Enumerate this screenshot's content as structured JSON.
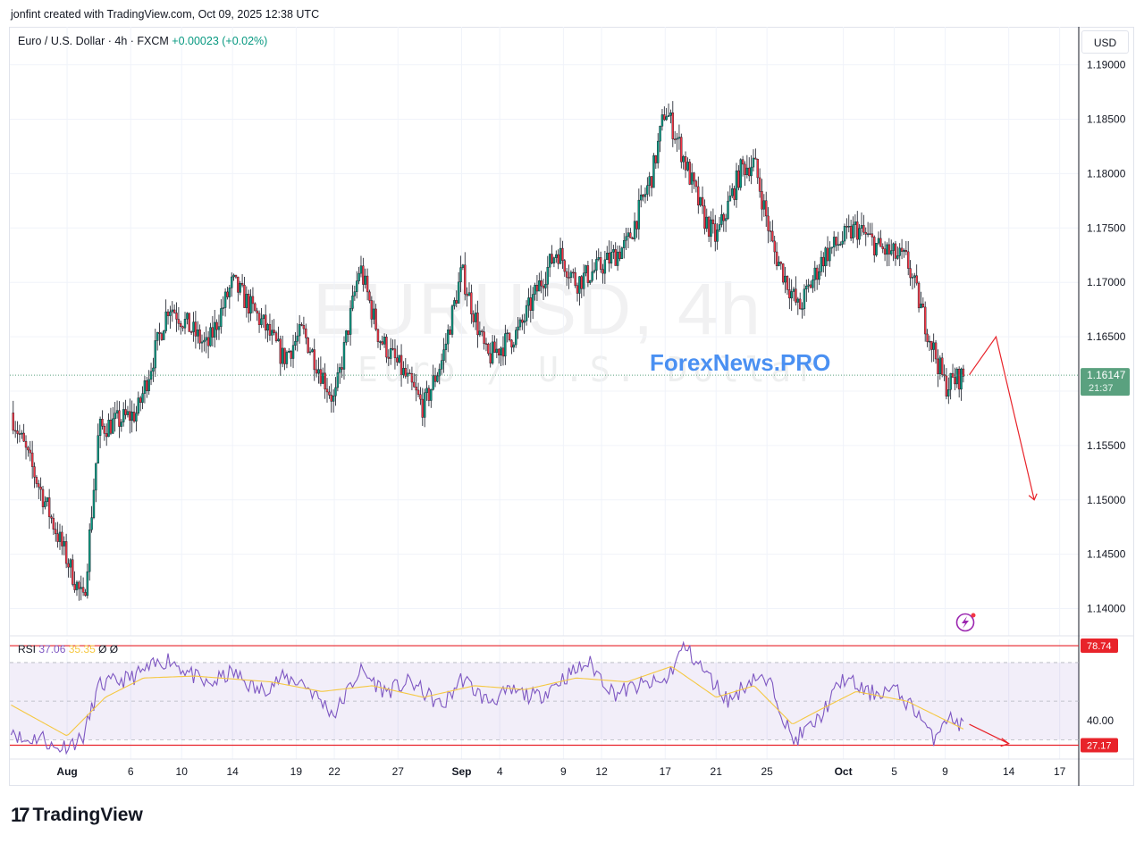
{
  "header": {
    "text": "jonfint created with TradingView.com, Oct 09, 2025 12:38 UTC"
  },
  "legend": {
    "symbol": "Euro / U.S. Dollar · 4h · FXCM",
    "change": "+0.00023 (+0.02%)"
  },
  "currency_button": "USD",
  "watermark": {
    "line1": "EURUSD, 4h",
    "line2": "Euro / U.S. Dollar"
  },
  "brand": "ForexNews.PRO",
  "rsi_legend": {
    "label": "RSI",
    "value": "37.06",
    "ma": "35.35",
    "sym1": "Ø",
    "sym2": "Ø"
  },
  "footer_logo": {
    "mark": "17",
    "text": "TradingView"
  },
  "colors": {
    "up": "#089981",
    "down": "#f23645",
    "rsi": "#7e57c2",
    "rsi_ma": "#f5c842",
    "annotation": "#e8232a",
    "price_tag": "#5aa17f"
  },
  "chart_data": [
    {
      "type": "candlestick",
      "title": "Euro / U.S. Dollar · 4h · FXCM",
      "ylim": [
        1.1375,
        1.1935
      ],
      "y_ticks": [
        "1.19000",
        "1.18500",
        "1.18000",
        "1.17500",
        "1.17000",
        "1.16500",
        "1.16000",
        "1.15500",
        "1.15000",
        "1.14500",
        "1.14000"
      ],
      "y_tick_values": [
        1.19,
        1.185,
        1.18,
        1.175,
        1.17,
        1.165,
        1.16,
        1.155,
        1.15,
        1.145,
        1.14
      ],
      "x_ticks": [
        "Aug",
        "6",
        "10",
        "14",
        "19",
        "22",
        "27",
        "Sep",
        "4",
        "9",
        "12",
        "17",
        "21",
        "25",
        "Oct",
        "5",
        "9",
        "14",
        "17"
      ],
      "x_tick_days": [
        0,
        5,
        9,
        13,
        18,
        21,
        26,
        31,
        34,
        39,
        42,
        47,
        51,
        55,
        61,
        65,
        69,
        74,
        78
      ],
      "x_range_days": [
        -4.5,
        79.5
      ],
      "last_price": {
        "value": 1.16147,
        "label": "1.16147",
        "countdown": "21:37"
      },
      "path_days": [
        -4.4,
        1.3,
        2.5,
        5.5,
        8,
        11,
        13,
        15.5,
        17,
        18.5,
        21,
        23,
        24.5,
        26.5,
        28,
        29.5,
        31,
        33,
        35.5,
        37,
        38.5,
        40,
        42,
        44,
        46,
        47,
        48,
        50,
        51,
        53,
        54,
        55.5,
        57.5,
        59.5,
        62,
        64,
        66,
        67.5,
        69,
        70.5
      ],
      "path_close": [
        1.158,
        1.1405,
        1.1565,
        1.158,
        1.168,
        1.164,
        1.17,
        1.166,
        1.163,
        1.1655,
        1.159,
        1.1715,
        1.165,
        1.1615,
        1.1585,
        1.163,
        1.171,
        1.163,
        1.1655,
        1.1695,
        1.173,
        1.17,
        1.1715,
        1.1735,
        1.18,
        1.186,
        1.183,
        1.176,
        1.174,
        1.1805,
        1.181,
        1.173,
        1.1675,
        1.1725,
        1.175,
        1.173,
        1.172,
        1.166,
        1.1605,
        1.1615
      ],
      "forecast_path": [
        [
          70.9,
          1.1615
        ],
        [
          73,
          1.165
        ],
        [
          76,
          1.15
        ]
      ]
    },
    {
      "type": "line",
      "title": "RSI",
      "ylim": [
        20,
        82
      ],
      "y_ticks": [
        "40.00"
      ],
      "y_tick_values": [
        40
      ],
      "marked_levels": [
        {
          "value": 78.74,
          "label": "78.74"
        },
        {
          "value": 27.17,
          "label": "27.17"
        }
      ],
      "band": [
        30,
        70
      ],
      "path_days": [
        -4.4,
        -3.5,
        -2,
        -1,
        1,
        1.3,
        2.5,
        5,
        8,
        11,
        13,
        15,
        17,
        18.5,
        21,
        23,
        25,
        27,
        29.5,
        31,
        33,
        35,
        37,
        39,
        41,
        43,
        45,
        47,
        48.5,
        50,
        52,
        54,
        55.5,
        57,
        59,
        61,
        63,
        65,
        67,
        68,
        69,
        70.5
      ],
      "path_values": [
        37,
        29,
        32,
        25,
        30,
        32,
        58,
        62,
        72,
        58,
        65,
        55,
        62,
        60,
        43,
        66,
        55,
        60,
        47,
        62,
        50,
        55,
        52,
        62,
        70,
        54,
        58,
        60,
        78.7,
        66,
        50,
        63,
        57,
        29,
        40,
        62,
        54,
        56,
        43,
        30,
        42,
        37.06
      ],
      "ma_path_days": [
        -4.4,
        0,
        3,
        6,
        10,
        16,
        20,
        24,
        28,
        32,
        36,
        40,
        44,
        47.5,
        51,
        54,
        57,
        59,
        62,
        66,
        70.5
      ],
      "ma_path_values": [
        48,
        32,
        52,
        62,
        63,
        60,
        55,
        58,
        52,
        58,
        56,
        62,
        60,
        68,
        52,
        58,
        38,
        45,
        55,
        50,
        35.35
      ],
      "forecast_path": [
        [
          70.9,
          38
        ],
        [
          74,
          28
        ]
      ]
    }
  ]
}
